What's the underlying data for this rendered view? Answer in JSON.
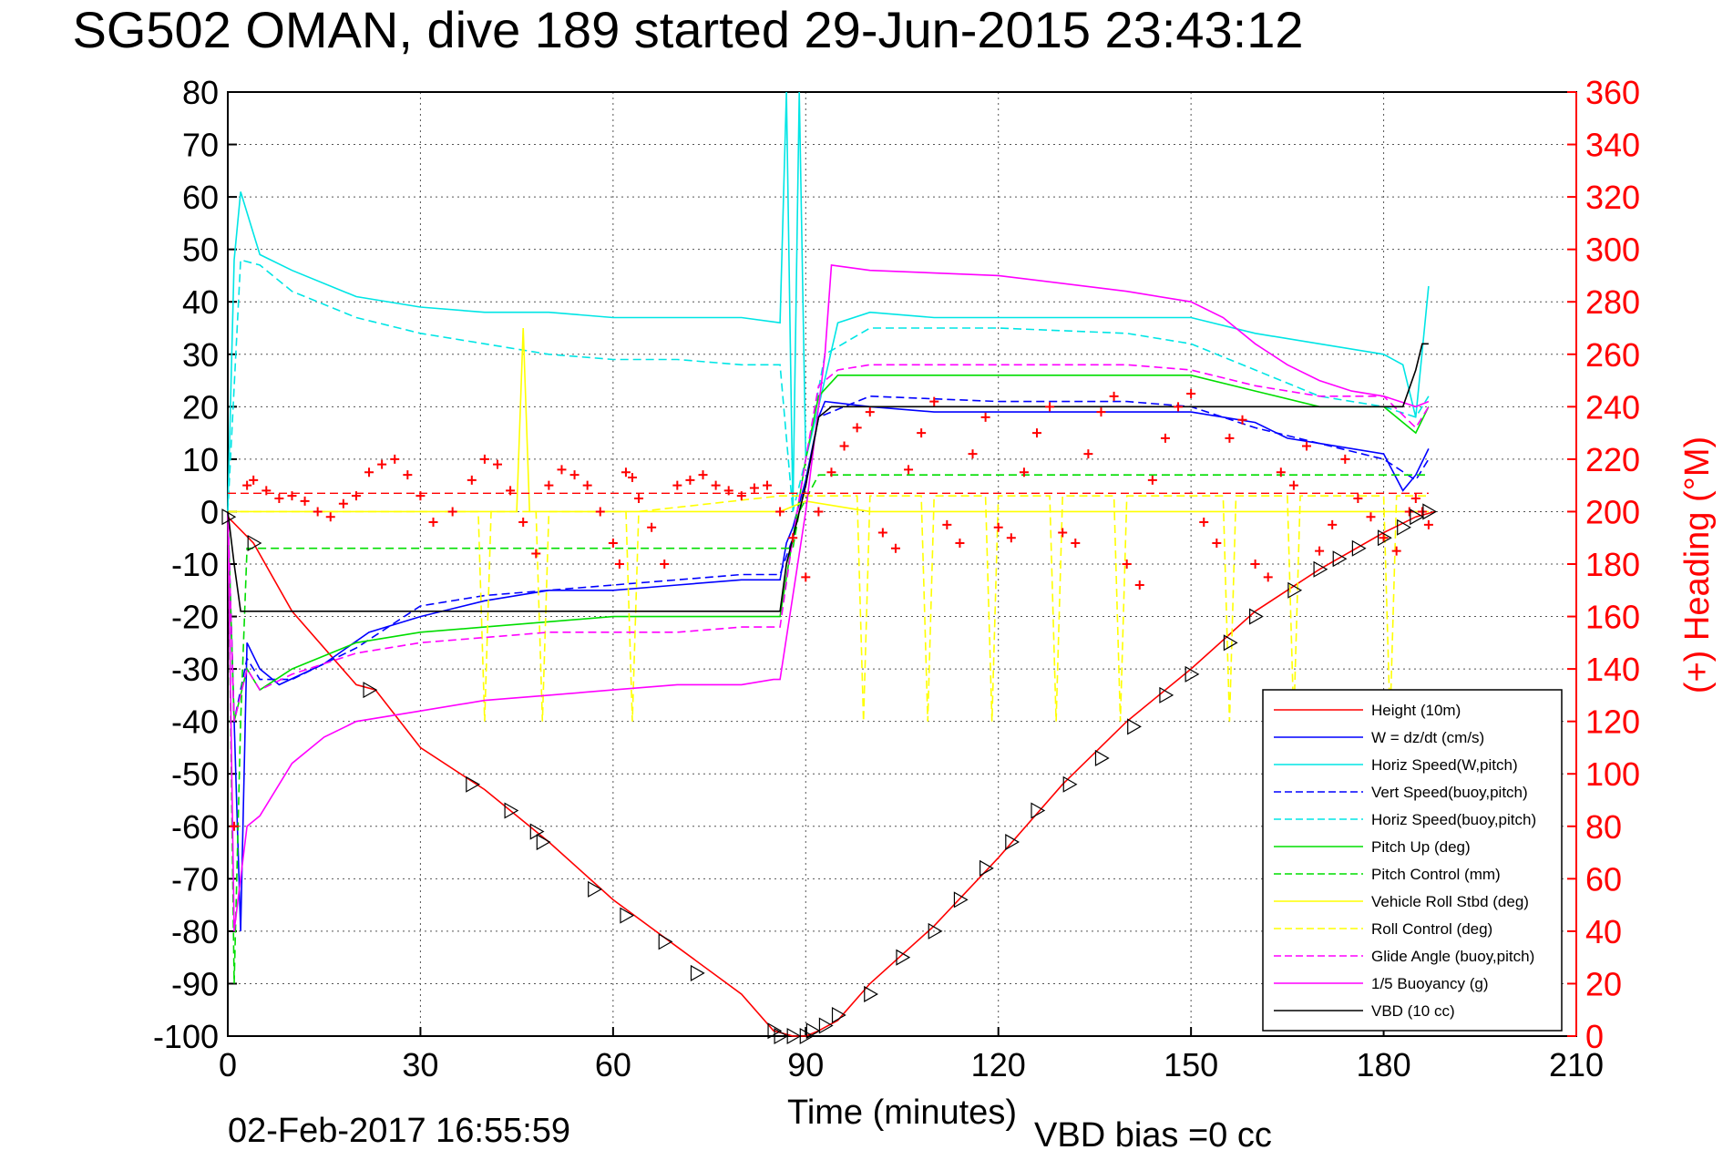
{
  "chart_data": {
    "type": "line",
    "title": "SG502 OMAN, dive 189 started 29-Jun-2015 23:43:12",
    "xlabel": "Time (minutes)",
    "ylabel": "",
    "ylabel_right": "(+) Heading (°M)",
    "footer_left": "02-Feb-2017 16:55:59",
    "footer_right": "VBD bias =0 cc",
    "xlim": [
      0,
      210
    ],
    "ylim": [
      -100,
      80
    ],
    "ylim_right": [
      0,
      360
    ],
    "xticks": [
      "0",
      "30",
      "60",
      "90",
      "120",
      "150",
      "180",
      "210"
    ],
    "yticks": [
      "80",
      "70",
      "60",
      "50",
      "40",
      "30",
      "20",
      "10",
      "0",
      "-10",
      "-20",
      "-30",
      "-40",
      "-50",
      "-60",
      "-70",
      "-80",
      "-90",
      "-100"
    ],
    "yticks_right": [
      "360",
      "340",
      "320",
      "300",
      "280",
      "260",
      "240",
      "220",
      "200",
      "180",
      "160",
      "140",
      "120",
      "100",
      "80",
      "60",
      "40",
      "20",
      "0"
    ],
    "grid": true,
    "legend_position": "lower-right",
    "series": [
      {
        "name": "Height (10m)",
        "color": "#ff0000",
        "style": "solid",
        "x": [
          0,
          4,
          10,
          20,
          23,
          30,
          40,
          50,
          60,
          70,
          80,
          85,
          88,
          90,
          92,
          95,
          100,
          110,
          120,
          130,
          140,
          150,
          160,
          170,
          180,
          185,
          188
        ],
        "y": [
          -1,
          -6,
          -19,
          -33,
          -34,
          -45,
          -53,
          -63,
          -74,
          -83,
          -92,
          -99,
          -100,
          -100,
          -99,
          -97,
          -90,
          -79,
          -66,
          -52,
          -40,
          -30,
          -19,
          -11,
          -4,
          -1,
          0
        ]
      },
      {
        "name": "W = dz/dt (cm/s)",
        "color": "#0000ff",
        "style": "solid",
        "x": [
          0,
          1,
          2,
          3,
          5,
          8,
          15,
          22,
          30,
          40,
          50,
          60,
          70,
          80,
          86,
          87,
          88,
          90,
          92,
          93,
          100,
          110,
          120,
          130,
          140,
          150,
          155,
          160,
          165,
          170,
          180,
          183,
          185,
          187
        ],
        "y": [
          0,
          -40,
          -80,
          -25,
          -30,
          -33,
          -29,
          -23,
          -20,
          -17,
          -15,
          -15,
          -14,
          -13,
          -13,
          -6,
          -3,
          6,
          18,
          21,
          20,
          19,
          19,
          19,
          19,
          19,
          18,
          17,
          14,
          13,
          11,
          4,
          7,
          12
        ]
      },
      {
        "name": "Horiz Speed(W,pitch)",
        "color": "#00e5e5",
        "style": "solid",
        "x": [
          0,
          1,
          2,
          5,
          10,
          20,
          30,
          40,
          50,
          60,
          70,
          80,
          86,
          87,
          88,
          89,
          90,
          92,
          95,
          100,
          110,
          120,
          130,
          140,
          150,
          160,
          170,
          180,
          183,
          185,
          187
        ],
        "y": [
          0,
          48,
          61,
          49,
          46,
          41,
          39,
          38,
          38,
          37,
          37,
          37,
          36,
          80,
          0,
          80,
          10,
          20,
          36,
          38,
          37,
          37,
          37,
          37,
          37,
          34,
          32,
          30,
          28,
          18,
          43
        ]
      },
      {
        "name": "Vert Speed(buoy,pitch)",
        "color": "#0000ff",
        "style": "dashed",
        "x": [
          0,
          1,
          3,
          5,
          10,
          20,
          30,
          40,
          50,
          60,
          70,
          80,
          86,
          88,
          90,
          92,
          100,
          120,
          140,
          150,
          160,
          170,
          180,
          185,
          187
        ],
        "y": [
          0,
          -40,
          -28,
          -32,
          -32,
          -26,
          -18,
          -16,
          -15,
          -14,
          -13,
          -12,
          -12,
          -5,
          5,
          18,
          22,
          21,
          21,
          20,
          16,
          13,
          10,
          6,
          10
        ]
      },
      {
        "name": "Horiz Speed(buoy,pitch)",
        "color": "#00e5e5",
        "style": "dashed",
        "x": [
          0,
          2,
          5,
          10,
          20,
          30,
          40,
          50,
          60,
          70,
          80,
          86,
          88,
          90,
          93,
          100,
          120,
          140,
          150,
          160,
          170,
          180,
          185,
          187
        ],
        "y": [
          0,
          48,
          47,
          42,
          37,
          34,
          32,
          30,
          29,
          29,
          28,
          28,
          0,
          10,
          30,
          35,
          35,
          34,
          32,
          27,
          22,
          20,
          18,
          22
        ]
      },
      {
        "name": "Pitch Up (deg)",
        "color": "#00dd00",
        "style": "solid",
        "x": [
          0,
          1,
          3,
          5,
          10,
          20,
          30,
          40,
          50,
          60,
          70,
          80,
          86,
          88,
          90,
          92,
          95,
          100,
          120,
          140,
          150,
          160,
          170,
          180,
          185,
          187
        ],
        "y": [
          0,
          -40,
          -30,
          -34,
          -30,
          -25,
          -23,
          -22,
          -21,
          -20,
          -20,
          -20,
          -20,
          -5,
          10,
          22,
          26,
          26,
          26,
          26,
          26,
          23,
          20,
          20,
          15,
          20
        ]
      },
      {
        "name": "Pitch Control (mm)",
        "color": "#00dd00",
        "style": "dashed",
        "x": [
          0,
          1,
          2,
          3,
          86,
          88,
          89,
          92,
          160,
          163,
          180,
          187
        ],
        "y": [
          0,
          -90,
          -40,
          -7,
          -7,
          -7,
          0,
          7,
          7,
          7,
          7,
          7
        ]
      },
      {
        "name": "Vehicle Roll Stbd (deg)",
        "color": "#ffff00",
        "style": "solid",
        "x": [
          0,
          3,
          10,
          30,
          45,
          46,
          47,
          60,
          86,
          90,
          100,
          120,
          140,
          160,
          180,
          187
        ],
        "y": [
          0,
          0,
          0,
          0,
          0,
          35,
          0,
          0,
          0,
          2,
          0,
          0,
          0,
          0,
          0,
          0
        ]
      },
      {
        "name": "Roll Control (deg)",
        "color": "#ffff00",
        "style": "dashed",
        "x": [
          0,
          3,
          39,
          40,
          41,
          48,
          49,
          50,
          62,
          63,
          64,
          86,
          98,
          99,
          100,
          108,
          109,
          110,
          118,
          119,
          120,
          128,
          129,
          130,
          138,
          139,
          140,
          155,
          156,
          157,
          165,
          166,
          167,
          180,
          181,
          182,
          187
        ],
        "y": [
          0,
          0,
          0,
          -40,
          0,
          0,
          -40,
          0,
          0,
          -40,
          0,
          3,
          3,
          -40,
          3,
          3,
          -40,
          3,
          3,
          -40,
          3,
          3,
          -40,
          3,
          3,
          -40,
          3,
          3,
          -40,
          3,
          3,
          -40,
          3,
          3,
          -40,
          3,
          3
        ]
      },
      {
        "name": "Glide Angle (buoy,pitch)",
        "color": "#ff00ff",
        "style": "dashed",
        "x": [
          0,
          1,
          3,
          5,
          10,
          20,
          30,
          40,
          50,
          60,
          70,
          80,
          86,
          88,
          90,
          92,
          95,
          100,
          120,
          140,
          150,
          160,
          170,
          180,
          185,
          187
        ],
        "y": [
          0,
          -40,
          -30,
          -34,
          -31,
          -27,
          -25,
          -24,
          -23,
          -23,
          -23,
          -22,
          -22,
          -5,
          10,
          24,
          27,
          28,
          28,
          28,
          27,
          24,
          22,
          22,
          16,
          20
        ]
      },
      {
        "name": "1/5 Buoyancy (g)",
        "color": "#ff00ff",
        "style": "solid",
        "x": [
          0,
          1,
          3,
          5,
          10,
          15,
          20,
          30,
          40,
          50,
          60,
          70,
          80,
          85,
          86,
          90,
          93,
          94,
          100,
          120,
          140,
          150,
          155,
          160,
          165,
          170,
          175,
          180,
          185,
          187
        ],
        "y": [
          0,
          -80,
          -60,
          -58,
          -48,
          -43,
          -40,
          -38,
          -36,
          -35,
          -34,
          -33,
          -33,
          -32,
          -32,
          0,
          30,
          47,
          46,
          45,
          42,
          40,
          37,
          32,
          28,
          25,
          23,
          22,
          20,
          21
        ]
      },
      {
        "name": "VBD (10 cc)",
        "color": "#000000",
        "style": "solid",
        "x": [
          0,
          1,
          2,
          86,
          87,
          90,
          92,
          94,
          100,
          120,
          140,
          150,
          160,
          180,
          183,
          185,
          186,
          187
        ],
        "y": [
          0,
          -10,
          -19,
          -19,
          -10,
          5,
          18,
          20,
          20,
          20,
          20,
          20,
          20,
          20,
          20,
          27,
          32,
          32
        ]
      }
    ],
    "heading_series": {
      "name": "(+) Heading (°M)",
      "color": "#ff0000",
      "marker": "+",
      "x": [
        1,
        3,
        4,
        6,
        8,
        10,
        12,
        14,
        16,
        18,
        20,
        22,
        24,
        26,
        28,
        30,
        32,
        35,
        38,
        40,
        42,
        44,
        46,
        48,
        50,
        52,
        54,
        56,
        58,
        60,
        61,
        62,
        63,
        64,
        66,
        68,
        70,
        72,
        74,
        76,
        78,
        80,
        82,
        84,
        86,
        88,
        90,
        92,
        94,
        96,
        98,
        100,
        102,
        104,
        106,
        108,
        110,
        112,
        114,
        116,
        118,
        120,
        122,
        124,
        126,
        128,
        130,
        132,
        134,
        136,
        138,
        140,
        142,
        144,
        146,
        148,
        150,
        152,
        154,
        156,
        158,
        160,
        162,
        164,
        166,
        168,
        170,
        172,
        174,
        176,
        178,
        180,
        182,
        184,
        185,
        186,
        187
      ],
      "y": [
        80,
        210,
        212,
        208,
        205,
        206,
        204,
        200,
        198,
        203,
        206,
        215,
        218,
        220,
        214,
        206,
        196,
        200,
        212,
        220,
        218,
        208,
        196,
        184,
        210,
        216,
        214,
        210,
        200,
        188,
        180,
        215,
        213,
        205,
        194,
        180,
        210,
        212,
        214,
        210,
        208,
        206,
        209,
        210,
        200,
        190,
        175,
        200,
        215,
        225,
        232,
        238,
        192,
        186,
        216,
        230,
        242,
        195,
        188,
        222,
        236,
        194,
        190,
        215,
        230,
        240,
        192,
        188,
        222,
        238,
        244,
        180,
        172,
        212,
        228,
        240,
        245,
        196,
        188,
        228,
        235,
        180,
        175,
        215,
        210,
        225,
        185,
        195,
        220,
        205,
        198,
        190,
        185,
        200,
        205,
        200,
        195
      ]
    },
    "reference_lines": [
      {
        "label": "",
        "color": "#ff0000",
        "style": "dashed",
        "y_right": 207,
        "x": [
          0,
          187
        ]
      }
    ],
    "markers": {
      "name": "",
      "color": "#000000",
      "marker": "triangle",
      "x": [
        0,
        4,
        22,
        38,
        44,
        48,
        49,
        57,
        62,
        68,
        73,
        85,
        86,
        88,
        90,
        91,
        93,
        95,
        100,
        105,
        110,
        114,
        118,
        122,
        126,
        131,
        136,
        141,
        146,
        150,
        156,
        160,
        166,
        170,
        173,
        176,
        180,
        183,
        185,
        187
      ],
      "y": [
        -1,
        -6,
        -34,
        -52,
        -57,
        -61,
        -63,
        -72,
        -77,
        -82,
        -88,
        -99,
        -100,
        -100,
        -100,
        -99,
        -98,
        -96,
        -92,
        -85,
        -80,
        -74,
        -68,
        -63,
        -57,
        -52,
        -47,
        -41,
        -35,
        -31,
        -25,
        -20,
        -15,
        -11,
        -9,
        -7,
        -5,
        -3,
        -1,
        0
      ]
    }
  }
}
